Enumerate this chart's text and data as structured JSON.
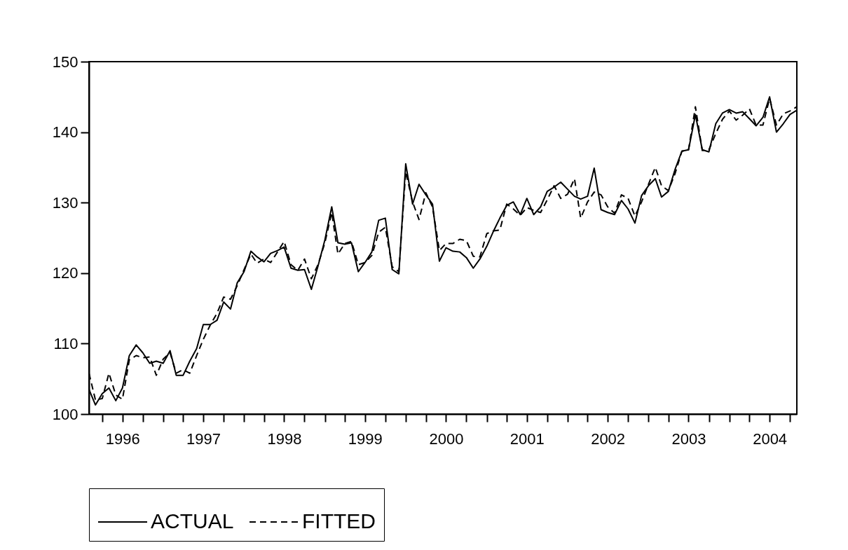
{
  "chart_data": {
    "type": "line",
    "legend": "bottom",
    "x": [
      "1996-02",
      "1996-03",
      "1996-04",
      "1996-05",
      "1996-06",
      "1996-07",
      "1996-08",
      "1996-09",
      "1996-10",
      "1996-11",
      "1996-12",
      "1997-01",
      "1997-02",
      "1997-03",
      "1997-04",
      "1997-05",
      "1997-06",
      "1997-07",
      "1997-08",
      "1997-09",
      "1997-10",
      "1997-11",
      "1997-12",
      "1998-01",
      "1998-02",
      "1998-03",
      "1998-04",
      "1998-05",
      "1998-06",
      "1998-07",
      "1998-08",
      "1998-09",
      "1998-10",
      "1998-11",
      "1998-12",
      "1999-01",
      "1999-02",
      "1999-03",
      "1999-04",
      "1999-05",
      "1999-06",
      "1999-07",
      "1999-08",
      "1999-09",
      "1999-10",
      "1999-11",
      "1999-12",
      "2000-01",
      "2000-02",
      "2000-03",
      "2000-04",
      "2000-05",
      "2000-06",
      "2000-07",
      "2000-08",
      "2000-09",
      "2000-10",
      "2000-11",
      "2000-12",
      "2001-01",
      "2001-02",
      "2001-03",
      "2001-04",
      "2001-05",
      "2001-06",
      "2001-07",
      "2001-08",
      "2001-09",
      "2001-10",
      "2001-11",
      "2001-12",
      "2002-01",
      "2002-02",
      "2002-03",
      "2002-04",
      "2002-05",
      "2002-06",
      "2002-07",
      "2002-08",
      "2002-09",
      "2002-10",
      "2002-11",
      "2002-12",
      "2003-01",
      "2003-02",
      "2003-03",
      "2003-04",
      "2003-05",
      "2003-06",
      "2003-07",
      "2003-08",
      "2003-09",
      "2003-10",
      "2003-11",
      "2003-12",
      "2004-01",
      "2004-02",
      "2004-03",
      "2004-04",
      "2004-05",
      "2004-06",
      "2004-07",
      "2004-08",
      "2004-09",
      "2004-10",
      "2004-11"
    ],
    "series": [
      {
        "name": "ACTUAL",
        "color": "#000000",
        "line_style": "solid",
        "values": [
          103.5,
          101.3,
          102.9,
          103.7,
          101.9,
          103.7,
          108.3,
          109.8,
          108.7,
          107.2,
          107.5,
          107.2,
          109.0,
          105.5,
          105.5,
          107.5,
          109.3,
          112.7,
          112.7,
          113.3,
          115.9,
          114.9,
          118.6,
          120.2,
          123.1,
          122.3,
          121.6,
          122.8,
          123.2,
          123.7,
          120.7,
          120.4,
          120.5,
          117.7,
          121.0,
          124.7,
          129.4,
          124.3,
          124.1,
          124.3,
          120.2,
          121.5,
          123.0,
          127.5,
          127.8,
          120.5,
          119.9,
          135.5,
          129.8,
          132.6,
          131.1,
          129.8,
          121.7,
          123.6,
          123.1,
          123.0,
          122.2,
          120.7,
          122.0,
          123.8,
          126.0,
          127.8,
          129.6,
          130.1,
          128.3,
          130.6,
          128.3,
          129.4,
          131.6,
          132.2,
          132.9,
          131.9,
          130.9,
          130.5,
          130.9,
          134.9,
          129.0,
          128.6,
          128.3,
          130.3,
          129.1,
          127.1,
          131.0,
          132.4,
          133.4,
          130.8,
          131.6,
          134.7,
          137.3,
          137.5,
          142.5,
          137.5,
          137.2,
          141.2,
          142.7,
          143.2,
          142.7,
          142.9,
          141.9,
          140.9,
          142.1,
          145.0,
          140.0,
          141.2,
          142.5,
          143.1
        ]
      },
      {
        "name": "FITTED",
        "color": "#000000",
        "line_style": "dashed",
        "values": [
          105.8,
          102.0,
          102.2,
          105.8,
          102.7,
          102.1,
          107.7,
          108.3,
          108.0,
          108.1,
          105.5,
          107.8,
          108.7,
          105.8,
          106.3,
          105.8,
          108.3,
          110.6,
          112.6,
          114.3,
          116.6,
          116.3,
          118.2,
          120.5,
          122.7,
          121.4,
          122.0,
          121.5,
          123.0,
          124.5,
          121.2,
          120.4,
          122.0,
          119.2,
          121.2,
          124.3,
          128.6,
          122.7,
          124.2,
          124.5,
          121.2,
          121.5,
          122.5,
          125.8,
          126.5,
          120.9,
          120.2,
          134.4,
          130.1,
          127.6,
          131.4,
          129.4,
          123.2,
          124.2,
          124.2,
          124.8,
          124.6,
          122.4,
          122.3,
          125.6,
          126.0,
          126.1,
          129.8,
          129.1,
          128.2,
          129.3,
          128.9,
          128.6,
          130.4,
          132.4,
          130.6,
          131.2,
          133.4,
          127.8,
          130.1,
          131.5,
          131.1,
          129.4,
          128.5,
          131.1,
          130.6,
          128.1,
          130.1,
          132.6,
          135.0,
          132.4,
          131.7,
          134.1,
          137.3,
          137.5,
          143.6,
          137.4,
          137.5,
          139.8,
          141.8,
          143.0,
          141.7,
          142.4,
          143.3,
          141.0,
          141.0,
          144.8,
          141.0,
          142.6,
          143.0,
          143.6
        ]
      }
    ],
    "xlim": [
      "1996-02",
      "2004-11"
    ],
    "xticks": [
      {
        "value": "1996-04",
        "label": null
      },
      {
        "value": "1996-07",
        "label": "1996"
      },
      {
        "value": "1996-10",
        "label": null
      },
      {
        "value": "1997-01",
        "label": null
      },
      {
        "value": "1997-04",
        "label": null
      },
      {
        "value": "1997-07",
        "label": "1997"
      },
      {
        "value": "1997-10",
        "label": null
      },
      {
        "value": "1998-01",
        "label": null
      },
      {
        "value": "1998-04",
        "label": null
      },
      {
        "value": "1998-07",
        "label": "1998"
      },
      {
        "value": "1998-10",
        "label": null
      },
      {
        "value": "1999-01",
        "label": null
      },
      {
        "value": "1999-04",
        "label": null
      },
      {
        "value": "1999-07",
        "label": "1999"
      },
      {
        "value": "1999-10",
        "label": null
      },
      {
        "value": "2000-01",
        "label": null
      },
      {
        "value": "2000-04",
        "label": null
      },
      {
        "value": "2000-07",
        "label": "2000"
      },
      {
        "value": "2000-10",
        "label": null
      },
      {
        "value": "2001-01",
        "label": null
      },
      {
        "value": "2001-04",
        "label": null
      },
      {
        "value": "2001-07",
        "label": "2001"
      },
      {
        "value": "2001-10",
        "label": null
      },
      {
        "value": "2002-01",
        "label": null
      },
      {
        "value": "2002-04",
        "label": null
      },
      {
        "value": "2002-07",
        "label": "2002"
      },
      {
        "value": "2002-10",
        "label": null
      },
      {
        "value": "2003-01",
        "label": null
      },
      {
        "value": "2003-04",
        "label": null
      },
      {
        "value": "2003-07",
        "label": "2003"
      },
      {
        "value": "2003-10",
        "label": null
      },
      {
        "value": "2004-01",
        "label": null
      },
      {
        "value": "2004-04",
        "label": null
      },
      {
        "value": "2004-07",
        "label": "2004"
      },
      {
        "value": "2004-10",
        "label": null
      }
    ],
    "ylim": [
      100,
      150
    ],
    "yticks": [
      100,
      110,
      120,
      130,
      140,
      150
    ]
  }
}
